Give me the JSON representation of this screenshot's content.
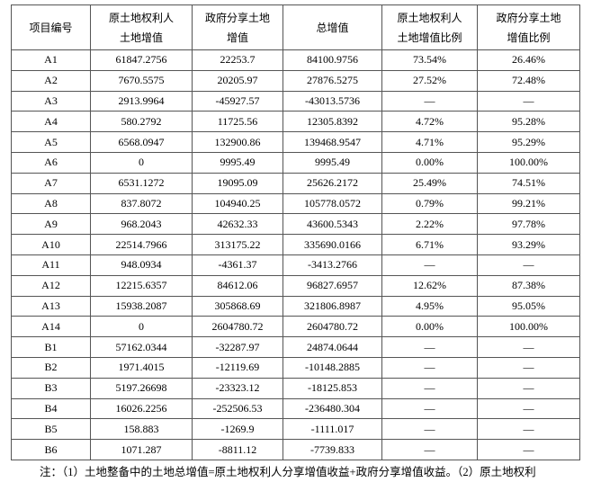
{
  "table": {
    "header": [
      [
        "项目编号"
      ],
      [
        "原土地权利人",
        "土地增值"
      ],
      [
        "政府分享土地",
        "增值"
      ],
      [
        "总增值"
      ],
      [
        "原土地权利人",
        "土地增值比例"
      ],
      [
        "政府分享土地",
        "增值比例"
      ]
    ],
    "rows": [
      [
        "A1",
        "61847.2756",
        "22253.7",
        "84100.9756",
        "73.54%",
        "26.46%"
      ],
      [
        "A2",
        "7670.5575",
        "20205.97",
        "27876.5275",
        "27.52%",
        "72.48%"
      ],
      [
        "A3",
        "2913.9964",
        "-45927.57",
        "-43013.5736",
        "—",
        "—"
      ],
      [
        "A4",
        "580.2792",
        "11725.56",
        "12305.8392",
        "4.72%",
        "95.28%"
      ],
      [
        "A5",
        "6568.0947",
        "132900.86",
        "139468.9547",
        "4.71%",
        "95.29%"
      ],
      [
        "A6",
        "0",
        "9995.49",
        "9995.49",
        "0.00%",
        "100.00%"
      ],
      [
        "A7",
        "6531.1272",
        "19095.09",
        "25626.2172",
        "25.49%",
        "74.51%"
      ],
      [
        "A8",
        "837.8072",
        "104940.25",
        "105778.0572",
        "0.79%",
        "99.21%"
      ],
      [
        "A9",
        "968.2043",
        "42632.33",
        "43600.5343",
        "2.22%",
        "97.78%"
      ],
      [
        "A10",
        "22514.7966",
        "313175.22",
        "335690.0166",
        "6.71%",
        "93.29%"
      ],
      [
        "A11",
        "948.0934",
        "-4361.37",
        "-3413.2766",
        "—",
        "—"
      ],
      [
        "A12",
        "12215.6357",
        "84612.06",
        "96827.6957",
        "12.62%",
        "87.38%"
      ],
      [
        "A13",
        "15938.2087",
        "305868.69",
        "321806.8987",
        "4.95%",
        "95.05%"
      ],
      [
        "A14",
        "0",
        "2604780.72",
        "2604780.72",
        "0.00%",
        "100.00%"
      ],
      [
        "B1",
        "57162.0344",
        "-32287.97",
        "24874.0644",
        "—",
        "—"
      ],
      [
        "B2",
        "1971.4015",
        "-12119.69",
        "-10148.2885",
        "—",
        "—"
      ],
      [
        "B3",
        "5197.26698",
        "-23323.12",
        "-18125.853",
        "—",
        "—"
      ],
      [
        "B4",
        "16026.2256",
        "-252506.53",
        "-236480.304",
        "—",
        "—"
      ],
      [
        "B5",
        "158.883",
        "-1269.9",
        "-1111.017",
        "—",
        "—"
      ],
      [
        "B6",
        "1071.287",
        "-8811.12",
        "-7739.833",
        "—",
        "—"
      ]
    ],
    "note": "注：（1）土地整备中的土地总增值=原土地权利人分享增值收益+政府分享增值收益。（2）原土地权利"
  }
}
